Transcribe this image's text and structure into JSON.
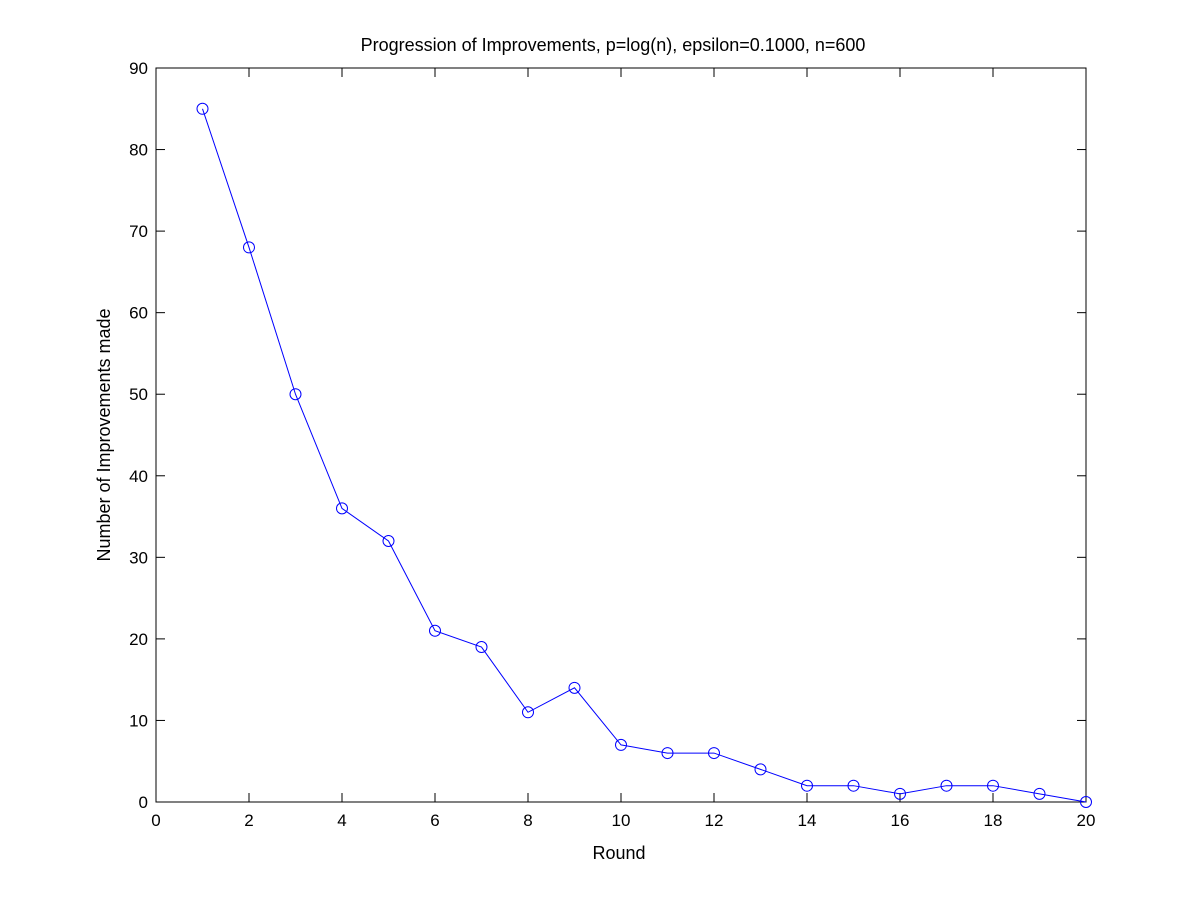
{
  "chart_data": {
    "type": "line",
    "title": "Progression of Improvements, p=log(n), epsilon=0.1000, n=600",
    "xlabel": "Round",
    "ylabel": "Number of Improvements made",
    "xlim": [
      0,
      20
    ],
    "ylim": [
      0,
      90
    ],
    "xticks": [
      "0",
      "2",
      "4",
      "6",
      "8",
      "10",
      "12",
      "14",
      "16",
      "18",
      "20"
    ],
    "yticks": [
      "0",
      "10",
      "20",
      "30",
      "40",
      "50",
      "60",
      "70",
      "80",
      "90"
    ],
    "grid": false,
    "marker": "circle",
    "series": [
      {
        "x": [
          1,
          2,
          3,
          4,
          5,
          6,
          7,
          8,
          9,
          10,
          11,
          12,
          13,
          14,
          15,
          16,
          17,
          18,
          19,
          20
        ],
        "y": [
          85,
          68,
          50,
          36,
          32,
          21,
          19,
          11,
          14,
          7,
          6,
          6,
          4,
          2,
          2,
          1,
          2,
          2,
          1,
          0
        ],
        "color": "#0000ff"
      }
    ]
  }
}
